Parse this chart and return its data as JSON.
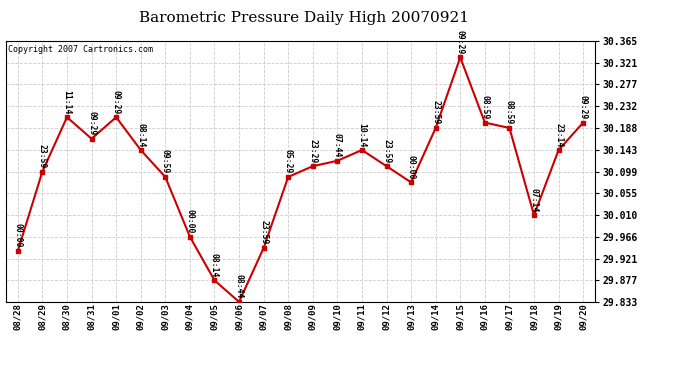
{
  "title": "Barometric Pressure Daily High 20070921",
  "copyright": "Copyright 2007 Cartronics.com",
  "background_color": "#ffffff",
  "line_color": "#cc0000",
  "grid_color": "#cccccc",
  "text_color": "#000000",
  "x_labels": [
    "08/28",
    "08/29",
    "08/30",
    "08/31",
    "09/01",
    "09/02",
    "09/03",
    "09/04",
    "09/05",
    "09/06",
    "09/07",
    "09/08",
    "09/09",
    "09/10",
    "09/11",
    "09/12",
    "09/13",
    "09/14",
    "09/15",
    "09/16",
    "09/17",
    "09/18",
    "09/19",
    "09/20"
  ],
  "y_values": [
    29.937,
    30.099,
    30.21,
    30.166,
    30.21,
    30.143,
    30.088,
    29.966,
    29.877,
    29.833,
    29.943,
    30.088,
    30.11,
    30.121,
    30.143,
    30.11,
    30.077,
    30.188,
    30.332,
    30.199,
    30.188,
    30.01,
    30.143,
    30.199
  ],
  "time_labels": [
    "00:00",
    "23:59",
    "11:14",
    "09:29",
    "09:29",
    "08:14",
    "09:59",
    "00:00",
    "08:14",
    "08:44",
    "23:59",
    "05:29",
    "23:29",
    "07:44",
    "10:14",
    "23:59",
    "00:00",
    "23:59",
    "09:29",
    "08:59",
    "08:59",
    "07:14",
    "23:14",
    "09:29"
  ],
  "ylim_min": 29.833,
  "ylim_max": 30.365,
  "yticks": [
    29.833,
    29.877,
    29.921,
    29.966,
    30.01,
    30.055,
    30.099,
    30.143,
    30.188,
    30.232,
    30.277,
    30.321,
    30.365
  ]
}
